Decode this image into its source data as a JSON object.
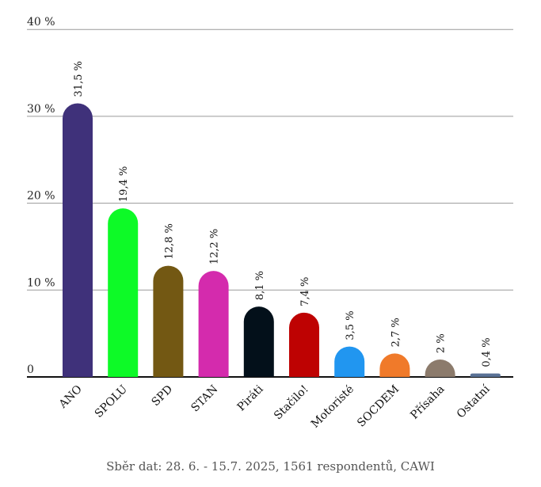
{
  "chart_data": {
    "type": "bar",
    "categories": [
      "ANO",
      "SPOLU",
      "SPD",
      "STAN",
      "Piráti",
      "Stačilo!",
      "Motoristé",
      "SOCDEM",
      "Přísaha",
      "Ostatní"
    ],
    "values": [
      31.5,
      19.4,
      12.8,
      12.2,
      8.1,
      7.4,
      3.5,
      2.7,
      2,
      0.4
    ],
    "value_labels": [
      "31,5 %",
      "19,4 %",
      "12,8 %",
      "12,2 %",
      "8,1 %",
      "7,4 %",
      "3,5 %",
      "2,7 %",
      "2 %",
      "0,4 %"
    ],
    "colors": [
      "#3f317a",
      "#0dfa27",
      "#735813",
      "#d42bad",
      "#03101a",
      "#be0202",
      "#2196f0",
      "#f07a2a",
      "#8c7b6c",
      "#5a7296"
    ],
    "yticks": [
      0,
      10,
      20,
      30,
      40
    ],
    "ytick_labels": [
      "0",
      "10 %",
      "20 %",
      "30 %",
      "40 %"
    ],
    "ylim": [
      0,
      40
    ],
    "grid": true
  },
  "footer": "Sběr dat: 28. 6. - 15.7. 2025, 1561 respondentů, CAWI"
}
